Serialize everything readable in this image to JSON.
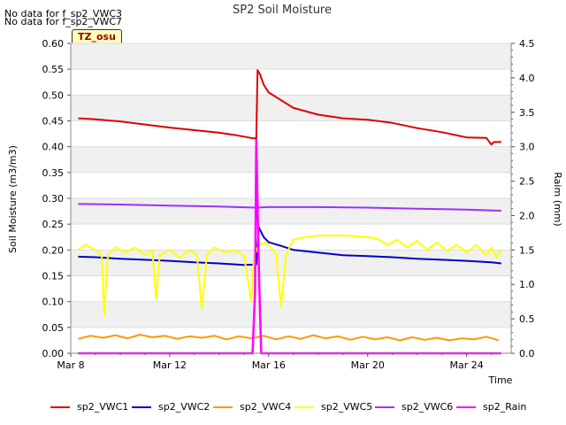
{
  "notes": [
    "No data for f_sp2_VWC3",
    "No data for f_sp2_VWC7"
  ],
  "badge": "TZ_osu",
  "chart_data": {
    "type": "line",
    "title": "SP2 Soil Moisture",
    "xlabel": "Time",
    "ylabel": "Soil Moisture (m3/m3)",
    "y2label": "Raim (mm)",
    "x_unit": "day of March",
    "xlim": [
      8,
      25.8
    ],
    "ylim": [
      0,
      0.6
    ],
    "y2lim": [
      0,
      4.5
    ],
    "x_ticks": [
      {
        "v": 8,
        "label": "Mar 8"
      },
      {
        "v": 12,
        "label": "Mar 12"
      },
      {
        "v": 16,
        "label": "Mar 16"
      },
      {
        "v": 20,
        "label": "Mar 20"
      },
      {
        "v": 24,
        "label": "Mar 24"
      }
    ],
    "y_ticks": [
      "0.00",
      "0.05",
      "0.10",
      "0.15",
      "0.20",
      "0.25",
      "0.30",
      "0.35",
      "0.40",
      "0.45",
      "0.50",
      "0.55",
      "0.60"
    ],
    "y2_ticks": [
      "0.0",
      "0.5",
      "1.0",
      "1.5",
      "2.0",
      "2.5",
      "3.0",
      "3.5",
      "4.0",
      "4.5"
    ],
    "grid": true,
    "legend_position": "bottom",
    "series": [
      {
        "name": "sp2_VWC1",
        "color": "#dd0000",
        "axis": "left",
        "x": [
          8.3,
          9,
          10,
          11,
          12,
          13,
          14,
          14.7,
          15.4,
          15.5,
          15.55,
          15.65,
          15.8,
          16,
          16.5,
          17,
          18,
          19,
          20,
          21,
          22,
          23,
          24,
          24.8,
          25,
          25.1,
          25.4
        ],
        "y": [
          0.455,
          0.453,
          0.449,
          0.443,
          0.437,
          0.432,
          0.427,
          0.422,
          0.416,
          0.416,
          0.548,
          0.54,
          0.52,
          0.505,
          0.49,
          0.475,
          0.462,
          0.455,
          0.452,
          0.446,
          0.436,
          0.428,
          0.418,
          0.417,
          0.404,
          0.409,
          0.409
        ]
      },
      {
        "name": "sp2_VWC2",
        "color": "#0000cc",
        "axis": "left",
        "x": [
          8.3,
          9,
          10,
          11,
          12,
          13,
          14,
          15,
          15.5,
          15.6,
          15.8,
          16,
          16.5,
          17,
          18,
          19,
          20,
          21,
          22,
          23,
          24,
          25,
          25.4
        ],
        "y": [
          0.187,
          0.186,
          0.183,
          0.181,
          0.179,
          0.176,
          0.174,
          0.171,
          0.172,
          0.244,
          0.225,
          0.215,
          0.208,
          0.2,
          0.195,
          0.19,
          0.188,
          0.186,
          0.183,
          0.181,
          0.179,
          0.176,
          0.174
        ]
      },
      {
        "name": "sp2_VWC4",
        "color": "#ff9900",
        "axis": "left",
        "x": [
          8.3,
          8.8,
          9.3,
          9.8,
          10.3,
          10.8,
          11.3,
          11.8,
          12.3,
          12.8,
          13.3,
          13.8,
          14.3,
          14.8,
          15.3,
          15.8,
          16.3,
          16.8,
          17.3,
          17.8,
          18.3,
          18.8,
          19.3,
          19.8,
          20.3,
          20.8,
          21.3,
          21.8,
          22.3,
          22.8,
          23.3,
          23.8,
          24.3,
          24.8,
          25.3
        ],
        "y": [
          0.028,
          0.034,
          0.03,
          0.035,
          0.029,
          0.036,
          0.031,
          0.034,
          0.028,
          0.033,
          0.03,
          0.034,
          0.027,
          0.033,
          0.029,
          0.034,
          0.027,
          0.033,
          0.028,
          0.035,
          0.029,
          0.033,
          0.026,
          0.032,
          0.027,
          0.031,
          0.025,
          0.031,
          0.026,
          0.03,
          0.025,
          0.029,
          0.027,
          0.032,
          0.025
        ]
      },
      {
        "name": "sp2_VWC5",
        "color": "#ffff00",
        "axis": "left",
        "x": [
          8.3,
          8.6,
          9,
          9.25,
          9.35,
          9.5,
          9.8,
          10.2,
          10.6,
          11,
          11.3,
          11.45,
          11.6,
          12,
          12.4,
          12.8,
          13.1,
          13.3,
          13.5,
          13.8,
          14.2,
          14.6,
          15,
          15.3,
          15.4,
          15.6,
          15.9,
          16.1,
          16.3,
          16.5,
          16.7,
          17,
          17.5,
          18,
          18.5,
          19,
          19.5,
          20,
          20.4,
          20.8,
          21.2,
          21.6,
          22,
          22.4,
          22.8,
          23.2,
          23.6,
          24,
          24.4,
          24.8,
          25,
          25.2,
          25.4
        ],
        "y": [
          0.2,
          0.21,
          0.2,
          0.19,
          0.075,
          0.19,
          0.205,
          0.195,
          0.205,
          0.19,
          0.2,
          0.105,
          0.19,
          0.2,
          0.185,
          0.2,
          0.19,
          0.085,
          0.19,
          0.205,
          0.195,
          0.2,
          0.19,
          0.1,
          0.185,
          0.21,
          0.215,
          0.205,
          0.19,
          0.09,
          0.19,
          0.22,
          0.225,
          0.228,
          0.228,
          0.228,
          0.227,
          0.225,
          0.222,
          0.21,
          0.22,
          0.205,
          0.218,
          0.2,
          0.215,
          0.198,
          0.21,
          0.195,
          0.21,
          0.19,
          0.205,
          0.185,
          0.2
        ]
      },
      {
        "name": "sp2_VWC6",
        "color": "#9933ff",
        "axis": "left",
        "x": [
          8.3,
          10,
          12,
          14,
          15.5,
          16,
          18,
          20,
          22,
          24,
          25.4
        ],
        "y": [
          0.289,
          0.288,
          0.286,
          0.284,
          0.282,
          0.283,
          0.283,
          0.282,
          0.28,
          0.278,
          0.276
        ]
      },
      {
        "name": "sp2_Rain",
        "color": "#ff00ff",
        "axis": "right",
        "x": [
          8.3,
          15.35,
          15.45,
          15.5,
          15.55,
          15.6,
          15.65,
          15.7,
          25.4
        ],
        "y": [
          0,
          0,
          0.9,
          3.1,
          2.2,
          1.3,
          0.6,
          0,
          0
        ]
      }
    ]
  }
}
